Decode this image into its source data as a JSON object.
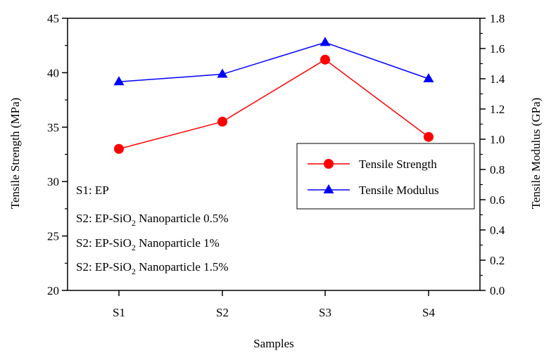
{
  "chart_data": {
    "type": "line",
    "categories": [
      "S1",
      "S2",
      "S3",
      "S4"
    ],
    "xlabel": "Samples",
    "ylabel": "Tensile Strength (MPa)",
    "ylabel_right": "Tensile Modulus (GPa)",
    "ylim": [
      20,
      45
    ],
    "yticks": [
      "20",
      "25",
      "30",
      "35",
      "40",
      "45"
    ],
    "ylim_right": [
      0.0,
      1.8
    ],
    "yticks_right": [
      "0.0",
      "0.2",
      "0.4",
      "0.6",
      "0.8",
      "1.0",
      "1.2",
      "1.4",
      "1.6",
      "1.8"
    ],
    "grid": false,
    "legend_position": "right-middle",
    "series": [
      {
        "name": "Tensile Strength",
        "axis": "left",
        "marker": "circle",
        "color": "#ff0000",
        "values": [
          33.0,
          35.5,
          41.2,
          34.1
        ]
      },
      {
        "name": "Tensile Modulus",
        "axis": "right",
        "marker": "triangle",
        "color": "#0000ff",
        "values": [
          1.38,
          1.43,
          1.64,
          1.4
        ]
      }
    ],
    "annotations": [
      {
        "label": "S1: EP",
        "base": "S1: EP",
        "sub": "",
        "tail": ""
      },
      {
        "label": "S2: EP-SiO2 Nanoparticle 0.5%",
        "base": "S2: EP-SiO",
        "sub": "2",
        "tail": " Nanoparticle 0.5%"
      },
      {
        "label": "S2: EP-SiO2 Nanoparticle 1%",
        "base": "S2: EP-SiO",
        "sub": "2",
        "tail": " Nanoparticle 1%"
      },
      {
        "label": "S2: EP-SiO2 Nanoparticle 1.5%",
        "base": "S2: EP-SiO",
        "sub": "2",
        "tail": " Nanoparticle 1.5%"
      }
    ]
  }
}
